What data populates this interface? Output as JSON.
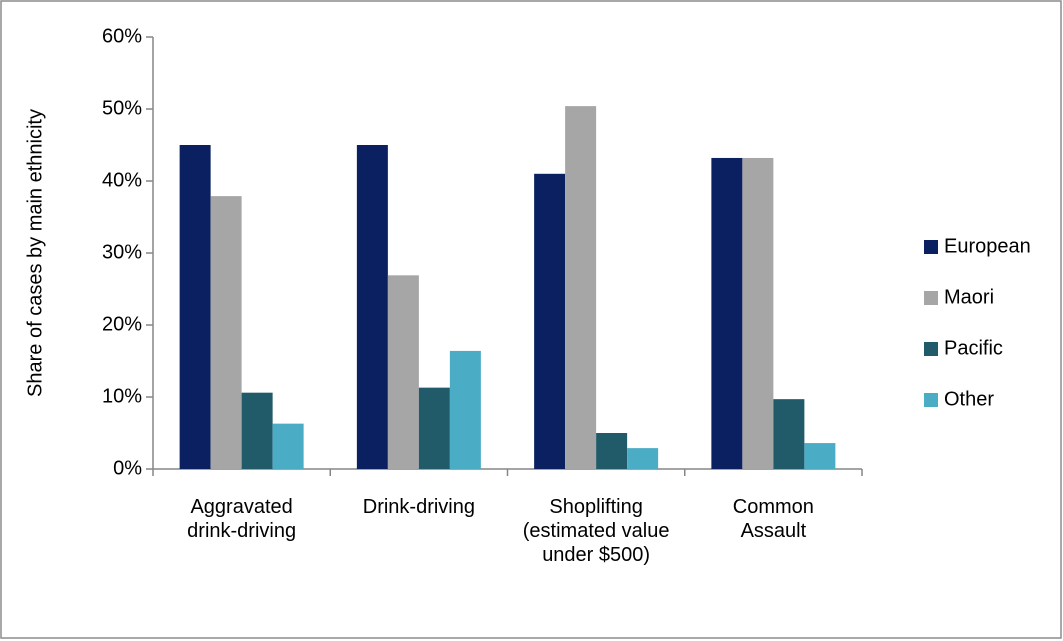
{
  "chart_data": {
    "type": "bar",
    "y_label": "Share of cases by main ethnicity",
    "categories": [
      "Aggravated drink-driving",
      "Drink-driving",
      "Shoplifting (estimated value under $500)",
      "Common Assault"
    ],
    "series": [
      {
        "name": "European",
        "color": "#0b2060",
        "values": [
          45,
          45,
          41,
          43.2
        ]
      },
      {
        "name": "Maori",
        "color": "#a6a6a6",
        "values": [
          37.9,
          26.9,
          50.4,
          43.2
        ]
      },
      {
        "name": "Pacific",
        "color": "#215a68",
        "values": [
          10.6,
          11.3,
          5,
          9.7
        ]
      },
      {
        "name": "Other",
        "color": "#4bacc6",
        "values": [
          6.3,
          16.4,
          2.9,
          3.6
        ]
      }
    ],
    "ylim": [
      0,
      60
    ],
    "yticks": [
      {
        "value": 0,
        "label": "0%"
      },
      {
        "value": 10,
        "label": "10%"
      },
      {
        "value": 20,
        "label": "20%"
      },
      {
        "value": 30,
        "label": "30%"
      },
      {
        "value": 40,
        "label": "40%"
      },
      {
        "value": 50,
        "label": "50%"
      },
      {
        "value": 60,
        "label": "60%"
      }
    ],
    "legend": "right",
    "grid": false
  }
}
